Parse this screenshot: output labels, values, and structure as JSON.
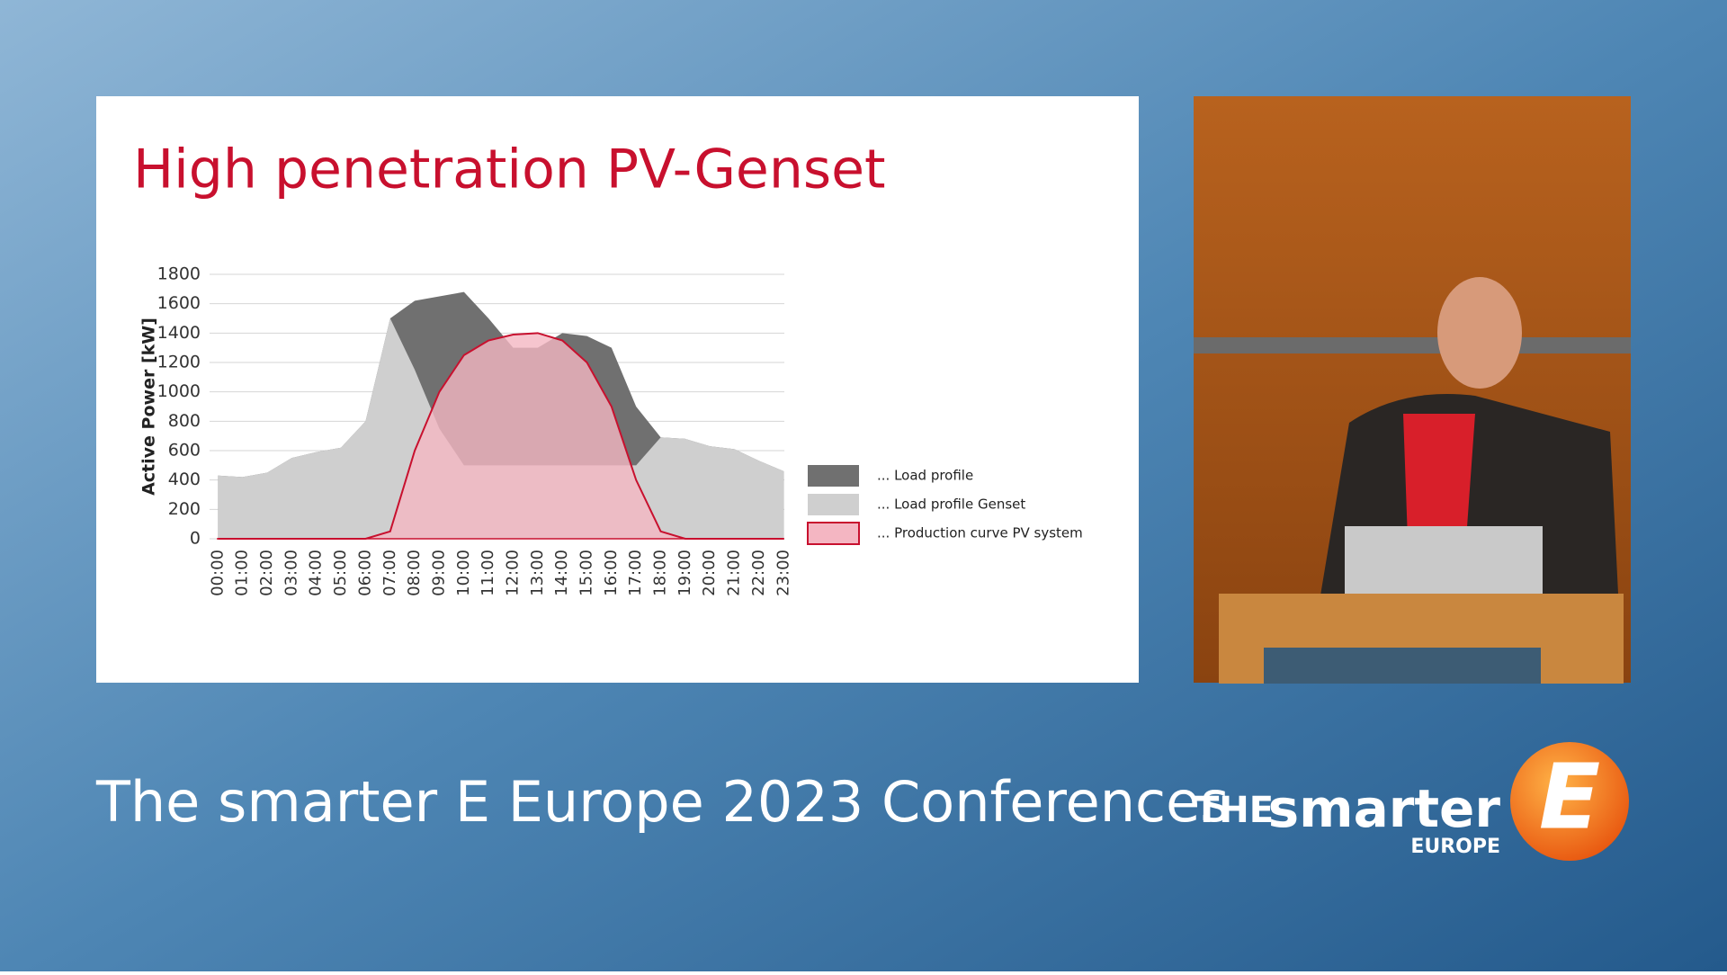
{
  "slide_title": "High penetration PV-Genset",
  "footer_title": "The smarter E Europe 2023 Conferences",
  "logo": {
    "the": "THE",
    "smarter": "smarter",
    "europe": "EUROPE",
    "letter": "E"
  },
  "chart_data": {
    "type": "area",
    "ylabel": "Active Power [kW]",
    "categories": [
      "00:00",
      "01:00",
      "02:00",
      "03:00",
      "04:00",
      "05:00",
      "06:00",
      "07:00",
      "08:00",
      "09:00",
      "10:00",
      "11:00",
      "12:00",
      "13:00",
      "14:00",
      "15:00",
      "16:00",
      "17:00",
      "18:00",
      "19:00",
      "20:00",
      "21:00",
      "22:00",
      "23:00"
    ],
    "series": [
      {
        "name": "... Load profile",
        "color": "#707070",
        "values": [
          430,
          420,
          450,
          550,
          590,
          620,
          800,
          1500,
          1620,
          1650,
          1680,
          1500,
          1300,
          1300,
          1400,
          1380,
          1300,
          900,
          690,
          680,
          630,
          610,
          530,
          460
        ]
      },
      {
        "name": "... Load profile Genset",
        "color": "#cfcfcf",
        "values": [
          430,
          420,
          450,
          550,
          590,
          620,
          800,
          1500,
          1150,
          750,
          500,
          500,
          500,
          500,
          500,
          500,
          500,
          500,
          690,
          680,
          630,
          610,
          530,
          460
        ]
      },
      {
        "name": "... Production curve PV system",
        "color": "#f4b6c2",
        "line_color": "#c8102e",
        "values": [
          0,
          0,
          0,
          0,
          0,
          0,
          0,
          50,
          600,
          1000,
          1250,
          1350,
          1390,
          1400,
          1350,
          1200,
          900,
          400,
          50,
          0,
          0,
          0,
          0,
          0
        ]
      }
    ],
    "ylim": [
      0,
      1800
    ],
    "yticks": [
      0,
      200,
      400,
      600,
      800,
      1000,
      1200,
      1400,
      1600,
      1800
    ],
    "grid": true,
    "legend": "right"
  }
}
